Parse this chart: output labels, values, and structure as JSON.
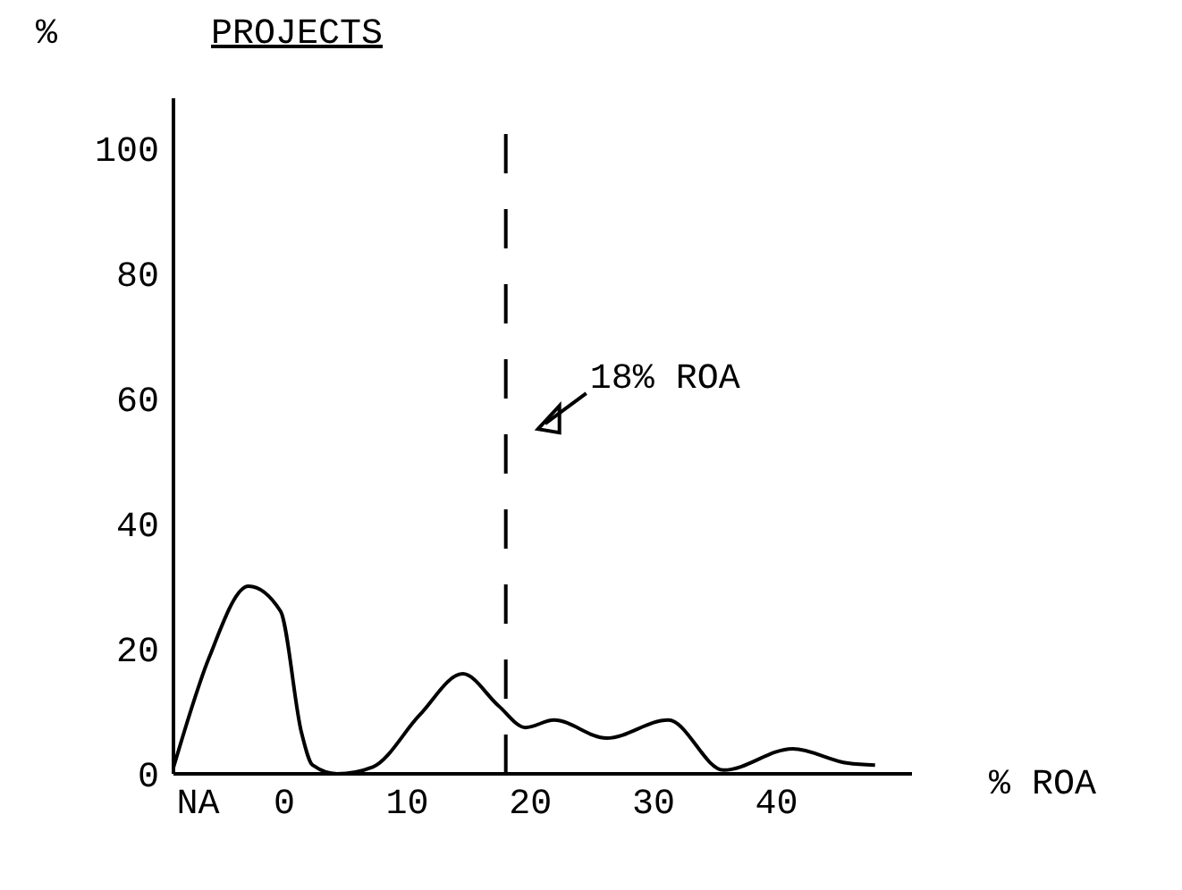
{
  "chart_data": {
    "type": "line",
    "title": "PROJECTS",
    "ylabel": "%",
    "xlabel": "% ROA",
    "xlim": [
      -9,
      51
    ],
    "ylim": [
      0,
      108
    ],
    "xticks": [
      {
        "value": -7,
        "label": "NA"
      },
      0,
      10,
      20,
      30,
      40
    ],
    "yticks": [
      0,
      20,
      40,
      60,
      80,
      100
    ],
    "grid": false,
    "marker": "none",
    "line_style": "solid",
    "series": [
      {
        "color": "#000000",
        "x": [
          -9,
          -6.1,
          -2.9,
          -0.3,
          1.4,
          2.3,
          4.3,
          7.2,
          11,
          14.5,
          17.4,
          19.6,
          21.9,
          26.2,
          31.2,
          35.7,
          41.3,
          45.8,
          48
        ],
        "values": [
          1,
          18.6,
          30,
          26,
          6.6,
          1.4,
          0,
          1.1,
          9.4,
          16,
          10.9,
          7.4,
          8.6,
          5.7,
          8.6,
          0.6,
          4,
          1.7,
          1.4
        ]
      }
    ],
    "ref_lines": [
      {
        "axis": "x",
        "value": 18,
        "label": "18% ROA",
        "line_style": "dashed",
        "color": "#000000"
      }
    ]
  }
}
